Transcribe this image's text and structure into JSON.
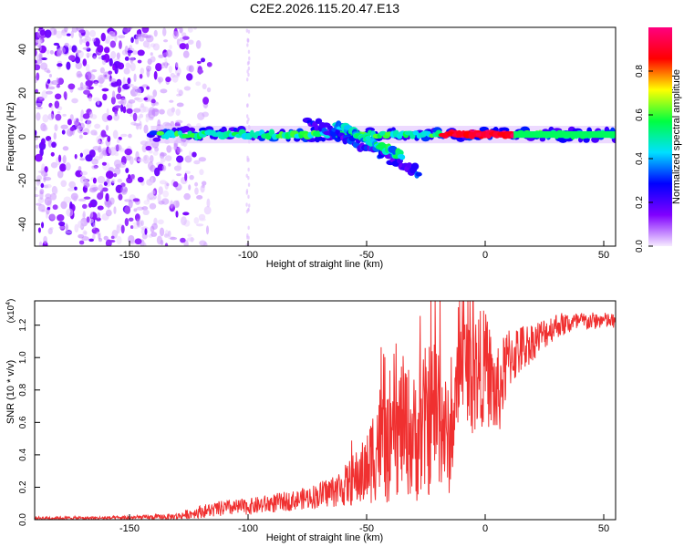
{
  "figure_title": "C2E2.2026.115.20.47.E13",
  "chart_data": [
    {
      "type": "heatmap",
      "title": "C2E2.2026.115.20.47.E13",
      "xlabel": "Height of straight line (km)",
      "ylabel": "Frequency (Hz)",
      "xlim": [
        -190,
        55
      ],
      "ylim": [
        -50,
        50
      ],
      "x_ticks": [
        -150,
        -100,
        -50,
        0,
        50
      ],
      "y_ticks": [
        -40,
        -20,
        0,
        20,
        40
      ],
      "colorbar": {
        "label": "Normalized spectral amplitude",
        "range": [
          0,
          1
        ],
        "ticks": [
          "0.0",
          "0.2",
          "0.4",
          "0.6",
          "0.8"
        ],
        "tick_values": [
          0,
          0.2,
          0.4,
          0.6,
          0.8
        ],
        "colors": [
          "#f6ebff",
          "#8000ff",
          "#0000ff",
          "#00e0ff",
          "#00ff40",
          "#ffff00",
          "#ff0000",
          "#ff0080"
        ]
      },
      "features": {
        "noise_region_x": [
          -190,
          -128
        ],
        "noise_faint_column_x": -100,
        "main_band": {
          "x": [
            -141,
            55
          ],
          "freq_hz": 1
        },
        "branch_1": {
          "x": [
            -75,
            -28
          ],
          "freq_start_hz": 8,
          "freq_end_hz": -16
        },
        "branch_2": {
          "x": [
            -63,
            -35
          ],
          "freq_start_hz": 6,
          "freq_end_hz": -9
        },
        "hot_segment_x": [
          -18,
          12
        ]
      }
    },
    {
      "type": "line",
      "title": "",
      "xlabel": "Height of straight line (km)",
      "ylabel": "SNR (10 * v/v)",
      "y_scale_label": "(x10",
      "y_scale_exponent": "4",
      "xlim": [
        -190,
        55
      ],
      "ylim": [
        0,
        1.35
      ],
      "x_ticks": [
        -150,
        -100,
        -50,
        0,
        50
      ],
      "y_ticks": [
        0.0,
        0.2,
        0.4,
        0.6,
        0.8,
        1.0,
        1.2
      ],
      "y_tick_labels": [
        "0.0",
        "0.2",
        "0.4",
        "0.6",
        "0.8",
        "1.0",
        "1.2"
      ],
      "series": [
        {
          "name": "SNR",
          "color": "#f03030",
          "x": [
            -190,
            -160,
            -140,
            -130,
            -120,
            -110,
            -100,
            -90,
            -80,
            -70,
            -60,
            -50,
            -45,
            -40,
            -35,
            -30,
            -25,
            -20,
            -15,
            -10,
            -5,
            0,
            5,
            10,
            20,
            30,
            40,
            50,
            55
          ],
          "y": [
            0.01,
            0.01,
            0.015,
            0.02,
            0.05,
            0.07,
            0.08,
            0.1,
            0.12,
            0.15,
            0.2,
            0.3,
            0.5,
            0.4,
            0.6,
            0.5,
            0.6,
            0.7,
            0.45,
            1.0,
            0.9,
            0.95,
            0.75,
            1.0,
            1.1,
            1.2,
            1.22,
            1.23,
            1.22
          ],
          "spread": [
            0.01,
            0.01,
            0.015,
            0.02,
            0.04,
            0.05,
            0.05,
            0.06,
            0.06,
            0.08,
            0.12,
            0.22,
            0.38,
            0.32,
            0.42,
            0.4,
            0.48,
            0.5,
            0.3,
            0.28,
            0.4,
            0.35,
            0.3,
            0.2,
            0.12,
            0.08,
            0.06,
            0.05,
            0.05
          ]
        }
      ]
    }
  ]
}
